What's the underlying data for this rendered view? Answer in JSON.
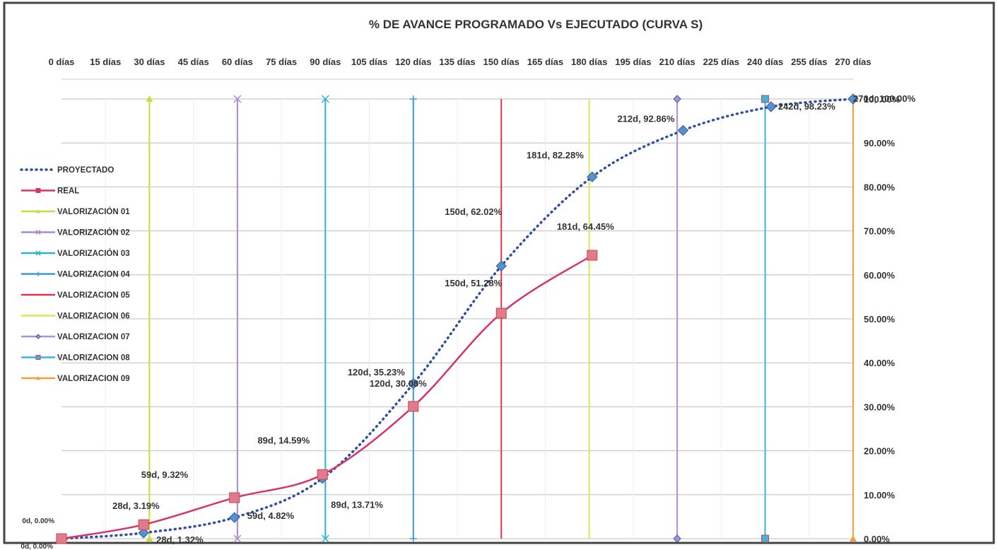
{
  "chart_data": {
    "type": "line",
    "title": "% DE AVANCE PROGRAMADO Vs EJECUTADO (CURVA S)",
    "x_tick_labels": [
      "0 días",
      "15 días",
      "30 días",
      "45 días",
      "60 días",
      "75 días",
      "90 días",
      "105 días",
      "120 días",
      "135 días",
      "150 días",
      "165 días",
      "180 días",
      "195 días",
      "210 días",
      "225 días",
      "240 días",
      "255 días",
      "270 días"
    ],
    "y_tick_labels": [
      "0.00%",
      "10.00%",
      "20.00%",
      "30.00%",
      "40.00%",
      "50.00%",
      "60.00%",
      "70.00%",
      "80.00%",
      "90.00%",
      "100.00%"
    ],
    "xlim": [
      0,
      270
    ],
    "ylim": [
      0,
      100
    ],
    "grid": true,
    "legend_position": "left",
    "series": [
      {
        "name": "PROYECTADO",
        "style": "dotted",
        "marker": "diamond",
        "color": "#2f4f9f",
        "marker_color": "#5a8fd0",
        "x": [
          0,
          28,
          59,
          89,
          120,
          150,
          181,
          212,
          242,
          270
        ],
        "y": [
          0.0,
          1.32,
          4.82,
          13.71,
          35.23,
          62.02,
          82.28,
          92.86,
          98.23,
          100.0
        ],
        "labels": [
          "0d, 0.00%",
          "28d, 1.32%",
          "59d, 4.82%",
          "89d, 13.71%",
          "120d, 35.23%",
          "150d, 62.02%",
          "181d, 82.28%",
          "212d, 92.86%",
          "242d, 98.23%",
          "270d, 100.00%"
        ]
      },
      {
        "name": "REAL",
        "style": "solid",
        "marker": "square",
        "color": "#d6336c",
        "marker_color": "#e07b8f",
        "x": [
          0,
          28,
          59,
          89,
          120,
          150,
          181
        ],
        "y": [
          0.0,
          3.19,
          9.32,
          14.59,
          30.08,
          51.28,
          64.45
        ],
        "labels": [
          "0d, 0.00%",
          "28d, 3.19%",
          "59d, 9.32%",
          "89d, 14.59%",
          "120d, 30.08%",
          "150d, 51.28%",
          "181d, 64.45%"
        ]
      },
      {
        "name": "VALORIZACIÓN 01",
        "color": "#c6de3c",
        "marker": "triangle",
        "x": [
          30,
          30
        ],
        "y": [
          0,
          100
        ]
      },
      {
        "name": "VALORIZACIÓN 02",
        "color": "#a98ad2",
        "marker": "x",
        "x": [
          60,
          60
        ],
        "y": [
          0,
          100
        ]
      },
      {
        "name": "VALORIZACIÓN 03",
        "color": "#2ab2d6",
        "marker": "x",
        "x": [
          90,
          90
        ],
        "y": [
          0,
          100
        ]
      },
      {
        "name": "VALORIZACION 04",
        "color": "#3b9ad6",
        "marker": "plus",
        "x": [
          120,
          120
        ],
        "y": [
          0,
          100
        ]
      },
      {
        "name": "VALORIZACION 05",
        "color": "#e0344a",
        "marker": "none",
        "x": [
          150,
          150
        ],
        "y": [
          0,
          100
        ]
      },
      {
        "name": "VALORIZACION 06",
        "color": "#d8e85a",
        "marker": "none",
        "x": [
          180,
          180
        ],
        "y": [
          0,
          100
        ]
      },
      {
        "name": "VALORIZACION 07",
        "color": "#b38ddb",
        "marker": "diamond",
        "x": [
          210,
          210
        ],
        "y": [
          0,
          100
        ]
      },
      {
        "name": "VALORIZACION 08",
        "color": "#3fb2e0",
        "marker": "square",
        "x": [
          240,
          240
        ],
        "y": [
          0,
          100
        ]
      },
      {
        "name": "VALORIZACION 09",
        "color": "#f0a040",
        "marker": "triangle",
        "x": [
          270,
          270
        ],
        "y": [
          0,
          100
        ]
      }
    ]
  }
}
